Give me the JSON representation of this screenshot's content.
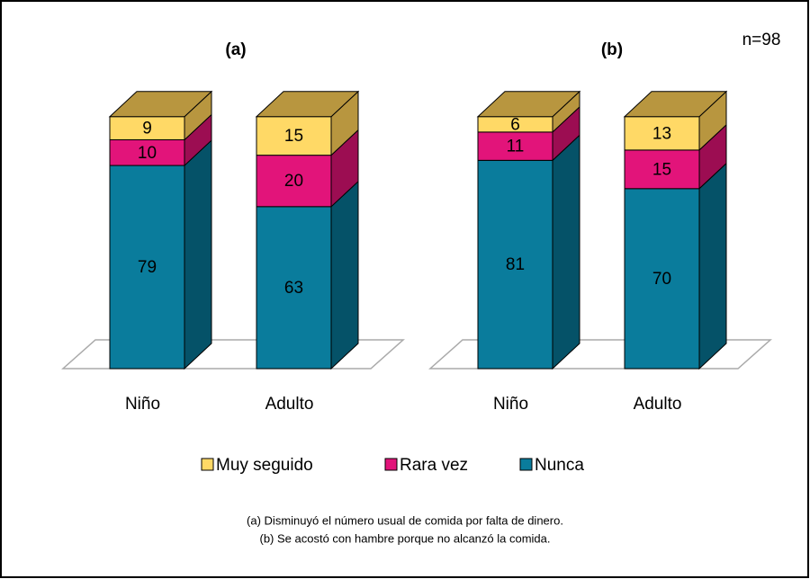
{
  "chart_data": {
    "type": "bar",
    "stacked": true,
    "three_d": true,
    "series": [
      {
        "name": "Muy seguido",
        "color": "#ffd966",
        "side_color": "#b8963f"
      },
      {
        "name": "Rara vez",
        "color": "#e2147a",
        "side_color": "#9c0d52"
      },
      {
        "name": "Nunca",
        "color": "#0a7c9c",
        "side_color": "#055268"
      }
    ],
    "panels": [
      {
        "title": "(a)",
        "categories": [
          "Niño",
          "Adulto"
        ],
        "values": [
          [
            9,
            15
          ],
          [
            10,
            20
          ],
          [
            79,
            63
          ]
        ]
      },
      {
        "title": "(b)",
        "categories": [
          "Niño",
          "Adulto"
        ],
        "values": [
          [
            6,
            13
          ],
          [
            11,
            15
          ],
          [
            81,
            70
          ]
        ]
      }
    ],
    "annotation": "n=98",
    "notes": [
      "(a) Disminuyó el número usual de comida por falta de dinero.",
      "(b) Se acostó con hambre porque no alcanzó la comida."
    ]
  }
}
